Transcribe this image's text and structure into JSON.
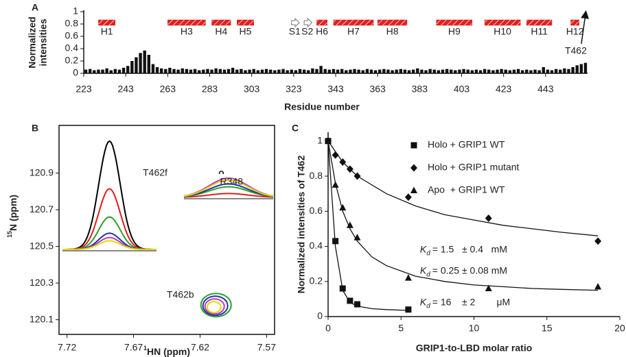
{
  "chart_data": [
    {
      "type": "bar",
      "panel_label": "A",
      "color": "#111111",
      "ylabel_lines": [
        "Normalized",
        "intensities"
      ],
      "xlabel": "Residue number",
      "xlim": [
        223,
        463
      ],
      "xticks": [
        223,
        243,
        263,
        283,
        303,
        323,
        343,
        363,
        383,
        403,
        423,
        443
      ],
      "ylim": [
        0,
        1
      ],
      "yticks": [
        0,
        0.2,
        0.4,
        0.6,
        0.8,
        1
      ],
      "x": [
        224,
        226,
        228,
        230,
        232,
        234,
        236,
        238,
        240,
        242,
        244,
        246,
        248,
        250,
        252,
        254,
        256,
        258,
        260,
        262,
        264,
        266,
        268,
        270,
        272,
        274,
        276,
        278,
        280,
        282,
        284,
        286,
        288,
        290,
        292,
        294,
        296,
        298,
        300,
        302,
        304,
        306,
        308,
        310,
        312,
        314,
        316,
        318,
        320,
        322,
        324,
        326,
        328,
        330,
        332,
        334,
        336,
        338,
        340,
        342,
        344,
        346,
        348,
        350,
        352,
        354,
        356,
        358,
        360,
        362,
        364,
        366,
        368,
        370,
        372,
        374,
        376,
        378,
        380,
        382,
        384,
        386,
        388,
        390,
        392,
        394,
        396,
        398,
        400,
        402,
        404,
        406,
        408,
        410,
        412,
        414,
        416,
        418,
        420,
        422,
        424,
        426,
        428,
        430,
        432,
        434,
        436,
        438,
        440,
        442,
        444,
        446,
        448,
        450,
        452,
        454,
        456,
        458,
        460,
        462
      ],
      "values": [
        0.06,
        0.07,
        0.05,
        0.06,
        0.06,
        0.08,
        0.05,
        0.07,
        0.06,
        0.09,
        0.12,
        0.2,
        0.26,
        0.33,
        0.37,
        0.3,
        0.15,
        0.1,
        0.08,
        0.07,
        0.09,
        0.07,
        0.06,
        0.08,
        0.07,
        0.06,
        0.07,
        0.05,
        0.06,
        0.07,
        0.06,
        0.08,
        0.07,
        0.06,
        0.07,
        0.09,
        0.06,
        0.07,
        0.05,
        0.06,
        0.07,
        0.05,
        0.06,
        0.07,
        0.06,
        0.05,
        0.06,
        0.07,
        0.05,
        0.06,
        0.05,
        0.07,
        0.06,
        0.05,
        0.08,
        0.07,
        0.12,
        0.07,
        0.06,
        0.07,
        0.06,
        0.07,
        0.05,
        0.06,
        0.07,
        0.06,
        0.05,
        0.07,
        0.06,
        0.05,
        0.06,
        0.07,
        0.06,
        0.05,
        0.06,
        0.07,
        0.06,
        0.05,
        0.06,
        0.08,
        0.06,
        0.05,
        0.07,
        0.06,
        0.05,
        0.06,
        0.07,
        0.06,
        0.05,
        0.06,
        0.07,
        0.06,
        0.05,
        0.06,
        0.05,
        0.07,
        0.06,
        0.05,
        0.06,
        0.07,
        0.06,
        0.05,
        0.06,
        0.07,
        0.05,
        0.06,
        0.05,
        0.06,
        0.05,
        0.1,
        0.06,
        0.05,
        0.07,
        0.06,
        0.08,
        0.07,
        0.1,
        0.13,
        0.15,
        0.17
      ],
      "elements": [
        {
          "label": "H1",
          "kind": "helix",
          "start": 230,
          "end": 238
        },
        {
          "label": "H3",
          "kind": "helix",
          "start": 263,
          "end": 281
        },
        {
          "label": "H4",
          "kind": "helix",
          "start": 284,
          "end": 293
        },
        {
          "label": "H5",
          "kind": "helix",
          "start": 296,
          "end": 304
        },
        {
          "label": "S1",
          "kind": "strand",
          "start": 322,
          "end": 325
        },
        {
          "label": "S2",
          "kind": "strand",
          "start": 328,
          "end": 331
        },
        {
          "label": "H6",
          "kind": "helix",
          "start": 334,
          "end": 339
        },
        {
          "label": "H7",
          "kind": "helix",
          "start": 342,
          "end": 361
        },
        {
          "label": "H8",
          "kind": "helix",
          "start": 363,
          "end": 377
        },
        {
          "label": "H9",
          "kind": "helix",
          "start": 391,
          "end": 408
        },
        {
          "label": "H10",
          "kind": "helix",
          "start": 414,
          "end": 431
        },
        {
          "label": "H11",
          "kind": "helix",
          "start": 434,
          "end": 446
        },
        {
          "label": "H12",
          "kind": "helix",
          "start": 455,
          "end": 459
        }
      ],
      "helix_color": "#e02020",
      "annotations": [
        {
          "text": "T462",
          "x": 462
        }
      ]
    },
    {
      "type": "contour",
      "panel_label": "B",
      "xlabel_sup": "1",
      "xlabel": "HN (ppm)",
      "ylabel_sup": "15",
      "ylabel": "N (ppm)",
      "xlim": [
        7.726,
        7.564
      ],
      "xticks": [
        7.72,
        7.67,
        7.62,
        7.57
      ],
      "ylim": [
        120.02,
        121.16
      ],
      "yticks": [
        120.1,
        120.3,
        120.5,
        120.7,
        120.9
      ],
      "peak_colors": [
        "#000000",
        "#e41a1c",
        "#2ca02c",
        "#2233aa",
        "#b040c0",
        "#e8d800"
      ],
      "slice_heights_f": [
        1,
        0.56,
        0.3,
        0.15,
        0.11,
        0.08
      ],
      "slice_heights_b": [
        null,
        0.2,
        0.55,
        0.7,
        1,
        0.9
      ],
      "peaks": [
        {
          "label": "T462b",
          "x": 7.608,
          "y": 120.18,
          "label_x": 7.645,
          "label_y": 120.233
        },
        {
          "label": "T462f",
          "x": 7.693,
          "y": 120.87,
          "label_x": 7.663,
          "label_y": 120.9
        },
        {
          "label": "R348",
          "x": 7.604,
          "y": 120.9,
          "label_x": 7.605,
          "label_y": 120.85
        }
      ]
    },
    {
      "type": "scatter",
      "panel_label": "C",
      "xlabel": "GRIP1-to-LBD molar ratio",
      "ylabel": "Normalized intensities of T462",
      "xlim": [
        0,
        20
      ],
      "xticks": [
        0,
        5,
        10,
        15,
        20
      ],
      "ylim": [
        0,
        1.05
      ],
      "yticks": [
        0,
        0.2,
        0.4,
        0.6,
        0.8,
        1
      ],
      "legend": "upper right",
      "series": [
        {
          "name": "Holo + GRIP1 WT",
          "marker": "square",
          "color": "#111111",
          "x": [
            0,
            0.5,
            1,
            1.5,
            2,
            5.5
          ],
          "values": [
            1,
            0.43,
            0.16,
            0.09,
            0.07,
            0.04
          ],
          "fit_x": [
            0,
            0.5,
            1,
            1.5,
            2,
            3,
            4,
            5.5
          ],
          "fit_values": [
            1,
            0.4,
            0.15,
            0.08,
            0.06,
            0.045,
            0.04,
            0.035
          ]
        },
        {
          "name": "Holo + GRIP1 mutant",
          "marker": "diamond",
          "color": "#111111",
          "x": [
            0,
            0.5,
            1,
            1.5,
            2,
            5.5,
            11,
            18.5
          ],
          "values": [
            1,
            0.92,
            0.88,
            0.84,
            0.8,
            0.68,
            0.56,
            0.43
          ],
          "fit_x": [
            0,
            1,
            2,
            4,
            6,
            8,
            10,
            12,
            14,
            16,
            18.5
          ],
          "fit_values": [
            1,
            0.88,
            0.8,
            0.7,
            0.63,
            0.58,
            0.55,
            0.52,
            0.5,
            0.48,
            0.46
          ]
        },
        {
          "name": "Apo  + GRIP1 WT",
          "marker": "triangle",
          "color": "#111111",
          "x": [
            0,
            0.5,
            1,
            1.5,
            2,
            5.5,
            11,
            18.5
          ],
          "values": [
            1,
            0.75,
            0.62,
            0.52,
            0.45,
            0.22,
            0.16,
            0.17
          ],
          "fit_x": [
            0,
            0.5,
            1,
            1.5,
            2,
            3,
            4,
            6,
            8,
            10,
            12,
            14,
            16,
            18.5
          ],
          "fit_values": [
            1,
            0.76,
            0.6,
            0.5,
            0.43,
            0.34,
            0.29,
            0.23,
            0.2,
            0.18,
            0.17,
            0.16,
            0.155,
            0.15
          ]
        }
      ],
      "annotations": [
        {
          "symbol": "K",
          "subscript": "d",
          "text": "= 1.5   ± 0.4   mM",
          "x": 6.3,
          "y": 0.38
        },
        {
          "symbol": "K",
          "subscript": "d",
          "text": "= 0.25 ± 0.08 mM",
          "x": 6.3,
          "y": 0.26
        },
        {
          "symbol": "K",
          "subscript": "d",
          "text": "= 16    ± 2        μM",
          "x": 6.3,
          "y": 0.08
        }
      ]
    }
  ]
}
